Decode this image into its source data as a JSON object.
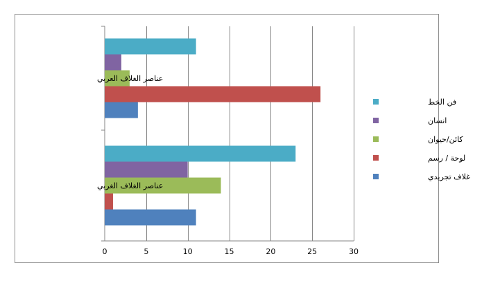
{
  "chart_data": {
    "type": "bar",
    "orientation": "horizontal",
    "categories": [
      "عناصر الغلاف العربي",
      "عناصر الغلاف الغربي"
    ],
    "series": [
      {
        "name": "فن الخط",
        "color": "#4bacc6",
        "values": [
          11,
          23
        ]
      },
      {
        "name": "انسان",
        "color": "#8064a2",
        "values": [
          2,
          10
        ]
      },
      {
        "name": "كائن/حيوان",
        "color": "#9bbb59",
        "values": [
          3,
          14
        ]
      },
      {
        "name": "لوحة / رسم",
        "color": "#c0504d",
        "values": [
          26,
          1
        ]
      },
      {
        "name": "غلاف تجريدي",
        "color": "#4f81bd",
        "values": [
          4,
          11
        ]
      }
    ],
    "xlim": [
      0,
      30
    ],
    "xticks": [
      0,
      5,
      10,
      15,
      20,
      25,
      30
    ],
    "grid": true,
    "legend_position": "right",
    "title": "",
    "xlabel": "",
    "ylabel": ""
  }
}
